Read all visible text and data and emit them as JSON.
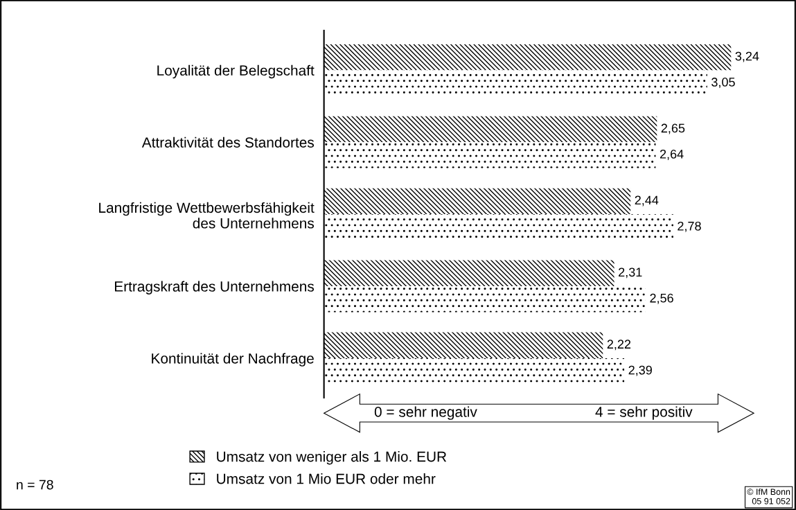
{
  "chart_data": {
    "type": "bar",
    "orientation": "horizontal",
    "categories": [
      "Loyalität der Belegschaft",
      "Attraktivität des Standortes",
      "Langfristige Wettbewerbsfähigkeit\ndes Unternehmens",
      "Ertragskraft des Unternehmens",
      "Kontinuität der Nachfrage"
    ],
    "series": [
      {
        "name": "Umsatz von weniger als 1 Mio. EUR",
        "color": "#ffffff",
        "values": [
          3.24,
          2.65,
          2.44,
          2.31,
          2.22
        ],
        "value_labels": [
          "3,24",
          "2,65",
          "2,44",
          "2,31",
          "2,22"
        ]
      },
      {
        "name": "Umsatz von 1 Mio EUR oder mehr",
        "color": "#ffffff",
        "values": [
          3.05,
          2.64,
          2.78,
          2.56,
          2.39
        ],
        "value_labels": [
          "3,05",
          "2,64",
          "2,78",
          "2,56",
          "2,39"
        ]
      }
    ],
    "relative": false,
    "tick_labels": "y",
    "grid": false,
    "legend": "bottom",
    "annotations": [
      "0 = sehr negativ",
      "4 = sehr positiv",
      "n = 78",
      "© IfM Bonn\n05 91 052"
    ]
  }
}
